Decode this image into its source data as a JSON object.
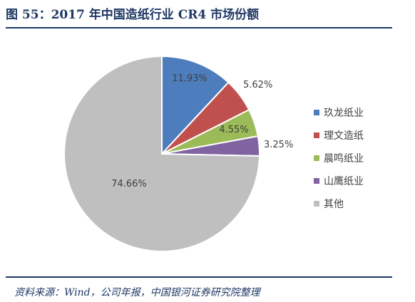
{
  "figure": {
    "title": "图 55：2017 年中国造纸行业 CR4 市场份额",
    "source": "资料来源：Wind，公司年报，中国银河证券研究院整理"
  },
  "chart_data": {
    "type": "pie",
    "title": "",
    "legend_position": "right",
    "slices": [
      {
        "name": "玖龙纸业",
        "value": 11.93,
        "label": "11.93%",
        "color": "#4e7dbd"
      },
      {
        "name": "理文造纸",
        "value": 5.62,
        "label": "5.62%",
        "color": "#c0504d"
      },
      {
        "name": "晨鸣纸业",
        "value": 4.55,
        "label": "4.55%",
        "color": "#9bbb59"
      },
      {
        "name": "山鹰纸业",
        "value": 3.25,
        "label": "3.25%",
        "color": "#8064a2"
      },
      {
        "name": "其他",
        "value": 74.66,
        "label": "74.66%",
        "color": "#bfbfbf"
      }
    ]
  }
}
